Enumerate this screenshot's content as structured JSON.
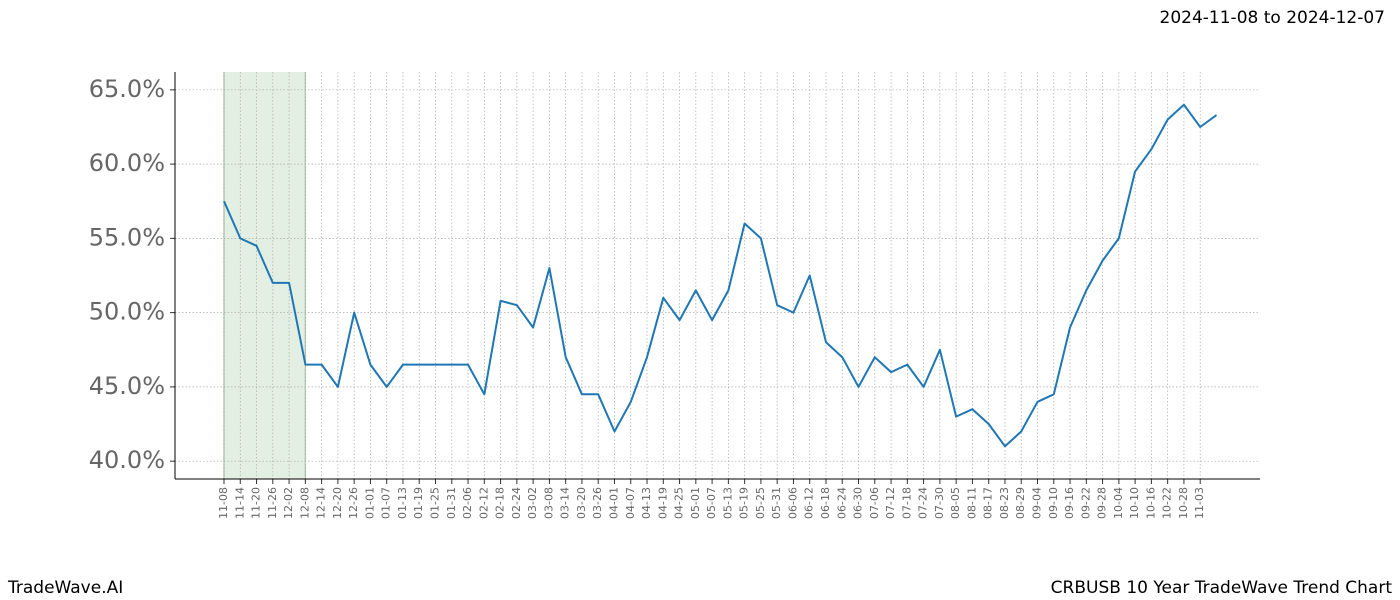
{
  "chart_data": {
    "type": "line",
    "subtitle": "2024-11-08 to 2024-12-07",
    "brand": "TradeWave.AI",
    "title": "CRBUSB 10 Year TradeWave Trend Chart",
    "categories": [
      "11-08",
      "11-14",
      "11-20",
      "11-26",
      "12-02",
      "12-08",
      "12-14",
      "12-20",
      "12-26",
      "01-01",
      "01-07",
      "01-13",
      "01-19",
      "01-25",
      "01-31",
      "02-06",
      "02-12",
      "02-18",
      "02-24",
      "03-02",
      "03-08",
      "03-14",
      "03-20",
      "03-26",
      "04-01",
      "04-07",
      "04-13",
      "04-19",
      "04-25",
      "05-01",
      "05-07",
      "05-13",
      "05-19",
      "05-25",
      "05-31",
      "06-06",
      "06-12",
      "06-18",
      "06-24",
      "06-30",
      "07-06",
      "07-12",
      "07-18",
      "07-24",
      "07-30",
      "08-05",
      "08-11",
      "08-17",
      "08-23",
      "08-29",
      "09-04",
      "09-10",
      "09-16",
      "09-22",
      "09-28",
      "10-04",
      "10-10",
      "10-16",
      "10-22",
      "10-28",
      "11-03",
      null
    ],
    "series": [
      {
        "name": "CRBUSB",
        "color": "#1f77b4",
        "values": [
          57.5,
          55,
          54.5,
          52,
          52,
          46.5,
          46.5,
          45,
          50,
          46.5,
          45,
          46.5,
          46.5,
          46.5,
          46.5,
          46.5,
          44.5,
          50.8,
          50.5,
          49,
          53,
          47,
          44.5,
          44.5,
          42,
          44,
          47,
          51,
          49.5,
          51.5,
          49.5,
          51.5,
          56,
          55,
          50.5,
          50,
          52.5,
          48,
          47,
          45,
          47,
          46,
          46.5,
          45,
          47.5,
          43,
          43.5,
          42.5,
          41,
          42,
          44,
          44.5,
          49,
          51.5,
          53.5,
          55,
          59.5,
          61,
          63,
          64,
          62.5,
          63.3
        ]
      }
    ],
    "ylim": [
      38.8,
      66.2
    ],
    "yticks": [
      {
        "value": 40,
        "label": "40.0%"
      },
      {
        "value": 45,
        "label": "45.0%"
      },
      {
        "value": 50,
        "label": "50.0%"
      },
      {
        "value": 55,
        "label": "55.0%"
      },
      {
        "value": 60,
        "label": "60.0%"
      },
      {
        "value": 65,
        "label": "65.0%"
      }
    ],
    "highlight_range": [
      0,
      5
    ],
    "highlight_color": "#e3efe3",
    "grid": true
  }
}
